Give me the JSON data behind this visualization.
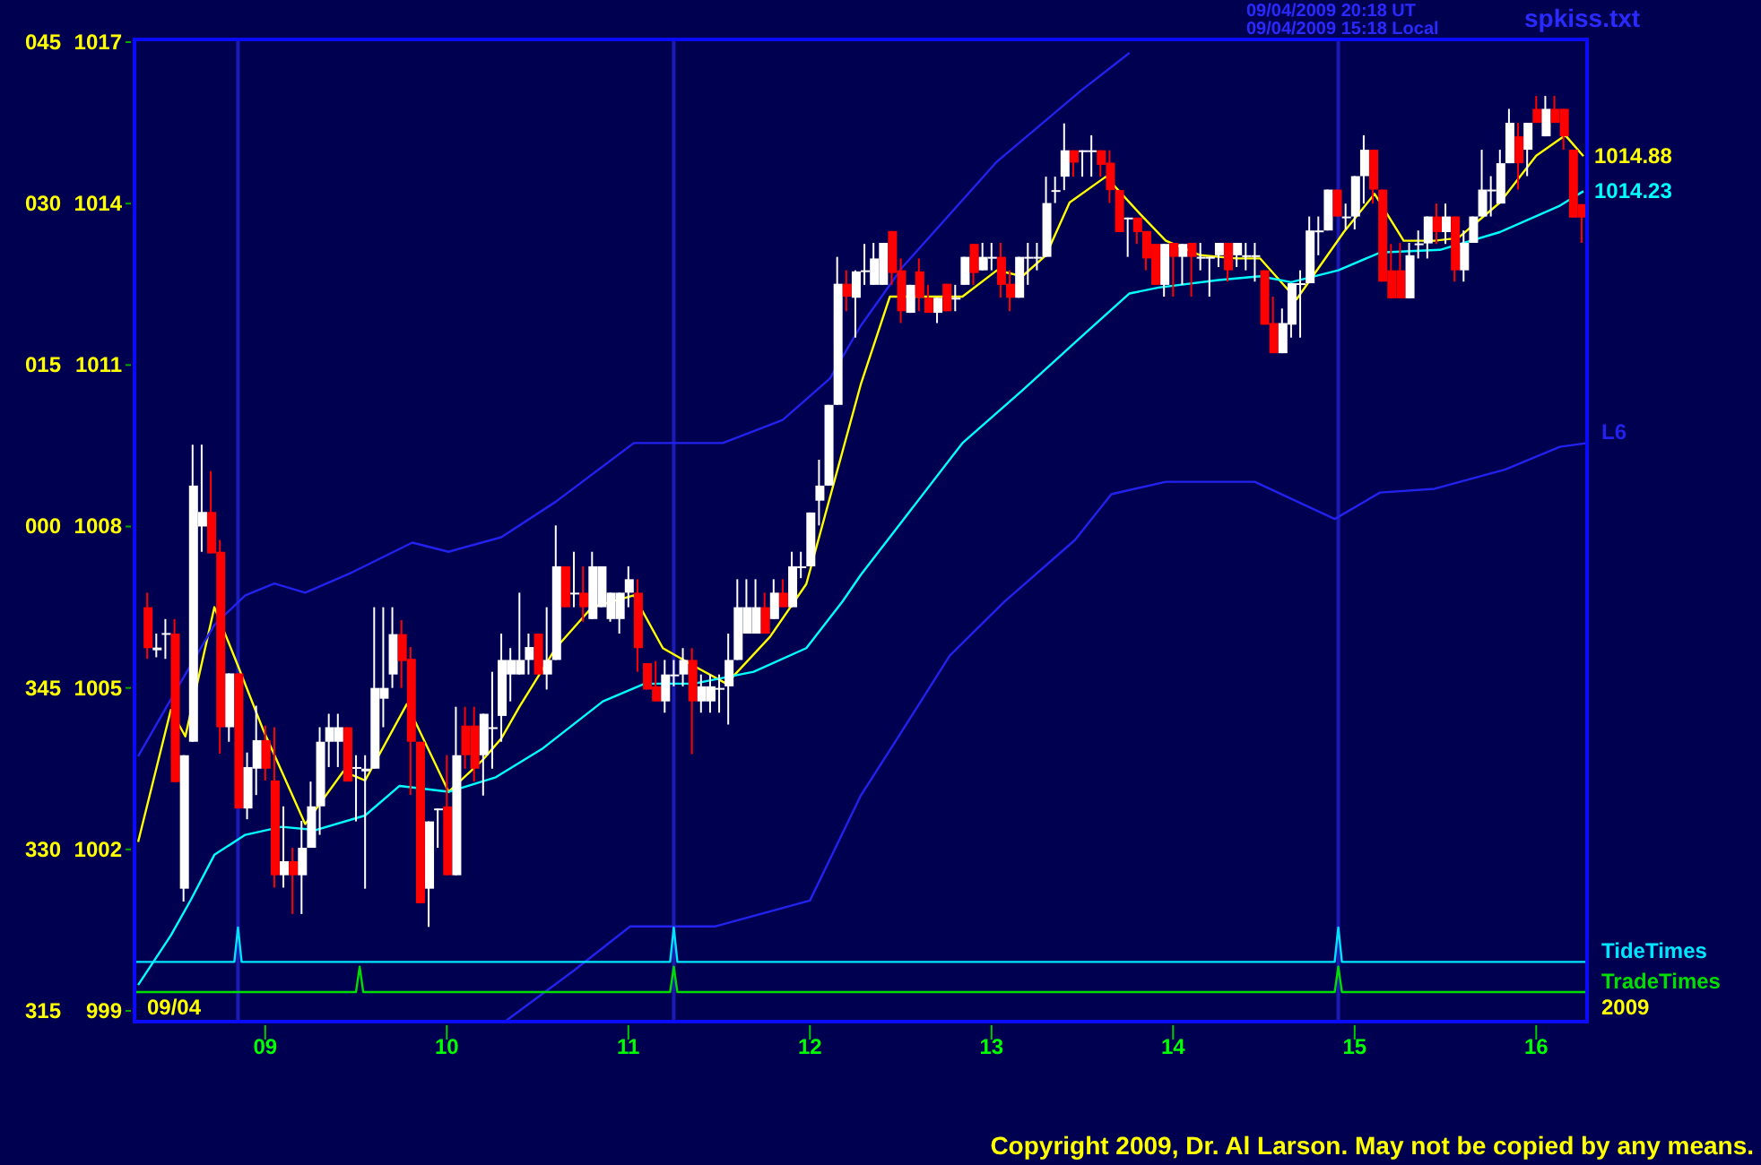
{
  "chart_data": {
    "type": "candlestick",
    "xlim": [
      8.28,
      16.28
    ],
    "ylim": [
      998.8,
      1017.05
    ],
    "xticks": [
      {
        "value": 9,
        "label": "09"
      },
      {
        "value": 10,
        "label": "10"
      },
      {
        "value": 11,
        "label": "11"
      },
      {
        "value": 12,
        "label": "12"
      },
      {
        "value": 13,
        "label": "13"
      },
      {
        "value": 14,
        "label": "14"
      },
      {
        "value": 15,
        "label": "15"
      },
      {
        "value": 16,
        "label": "16"
      }
    ],
    "yticks": [
      999,
      1002,
      1005,
      1008,
      1011,
      1014,
      1017
    ],
    "x": [
      8.35,
      8.4,
      8.45,
      8.5,
      8.55,
      8.6,
      8.65,
      8.7,
      8.75,
      8.8,
      8.85,
      8.9,
      8.95,
      9,
      9.05,
      9.1,
      9.15,
      9.2,
      9.25,
      9.3,
      9.35,
      9.4,
      9.45,
      9.5,
      9.55,
      9.6,
      9.65,
      9.7,
      9.75,
      9.8,
      9.85,
      9.9,
      9.95,
      10,
      10.05,
      10.1,
      10.15,
      10.2,
      10.25,
      10.3,
      10.35,
      10.4,
      10.45,
      10.5,
      10.55,
      10.6,
      10.65,
      10.7,
      10.75,
      10.8,
      10.85,
      10.9,
      10.95,
      11,
      11.05,
      11.1,
      11.15,
      11.2,
      11.25,
      11.3,
      11.35,
      11.4,
      11.45,
      11.5,
      11.55,
      11.6,
      11.65,
      11.7,
      11.75,
      11.8,
      11.85,
      11.9,
      11.95,
      12,
      12.05,
      12.1,
      12.15,
      12.2,
      12.25,
      12.3,
      12.35,
      12.4,
      12.45,
      12.5,
      12.55,
      12.6,
      12.65,
      12.7,
      12.75,
      12.8,
      12.85,
      12.9,
      12.95,
      13,
      13.05,
      13.1,
      13.15,
      13.2,
      13.25,
      13.3,
      13.35,
      13.4,
      13.45,
      13.5,
      13.55,
      13.6,
      13.65,
      13.7,
      13.75,
      13.8,
      13.85,
      13.9,
      13.95,
      14,
      14.05,
      14.1,
      14.15,
      14.2,
      14.25,
      14.3,
      14.35,
      14.4,
      14.45,
      14.5,
      14.55,
      14.6,
      14.65,
      14.7,
      14.75,
      14.8,
      14.85,
      14.9,
      14.95,
      15,
      15.05,
      15.1,
      15.15,
      15.2,
      15.25,
      15.3,
      15.35,
      15.4,
      15.45,
      15.5,
      15.55,
      15.6,
      15.65,
      15.7,
      15.75,
      15.8,
      15.85,
      15.9,
      15.95,
      16,
      16.05,
      16.1,
      16.15,
      16.2,
      16.25
    ],
    "ohlc": [
      [
        1006.5,
        1006.77,
        1005.54,
        1005.74
      ],
      [
        1005.7,
        1006.01,
        1005.57,
        1005.75
      ],
      [
        1006.0,
        1006.28,
        1005.54,
        1006.02
      ],
      [
        1006.01,
        1006.28,
        1003.25,
        1003.25
      ],
      [
        1001.27,
        1003.75,
        1001.03,
        1003.75
      ],
      [
        1004.0,
        1009.52,
        1004.0,
        1008.76
      ],
      [
        1008.0,
        1009.52,
        1007.53,
        1008.27
      ],
      [
        1008.27,
        1009.03,
        1007.5,
        1007.5
      ],
      [
        1007.53,
        1007.75,
        1003.78,
        1004.27
      ],
      [
        1004.27,
        1005.27,
        1004.0,
        1005.27
      ],
      [
        1005.27,
        1005.27,
        1002.76,
        1002.76
      ],
      [
        1002.76,
        1003.8,
        1002.56,
        1003.53
      ],
      [
        1003.5,
        1004.67,
        1003.01,
        1004.03
      ],
      [
        1004.03,
        1004.3,
        1003.28,
        1003.5
      ],
      [
        1003.28,
        1004.27,
        1001.29,
        1001.52
      ],
      [
        1001.52,
        1002.8,
        1001.29,
        1001.78
      ],
      [
        1001.78,
        1002.03,
        1000.8,
        1001.52
      ],
      [
        1001.52,
        1002.53,
        1000.8,
        1002.03
      ],
      [
        1002.03,
        1003.26,
        1002.03,
        1002.8
      ],
      [
        1002.8,
        1004.27,
        1002.27,
        1004.0
      ],
      [
        1004.0,
        1004.52,
        1003.53,
        1004.27
      ],
      [
        1004.0,
        1004.52,
        1003.53,
        1004.27
      ],
      [
        1004.27,
        1004.27,
        1003.26,
        1003.26
      ],
      [
        1003.5,
        1003.75,
        1002.52,
        1003.53
      ],
      [
        1003.45,
        1003.75,
        1001.27,
        1003.5
      ],
      [
        1003.5,
        1006.5,
        1003.5,
        1005.0
      ],
      [
        1004.8,
        1006.5,
        1004.27,
        1005.0
      ],
      [
        1005.25,
        1006.5,
        1005.0,
        1006.0
      ],
      [
        1006.0,
        1006.26,
        1005.0,
        1005.5
      ],
      [
        1005.54,
        1005.76,
        1003.01,
        1004.0
      ],
      [
        1004.0,
        1004.0,
        1001.0,
        1001.0
      ],
      [
        1001.27,
        1002.52,
        1000.56,
        1002.52
      ],
      [
        1002.75,
        1002.76,
        1002.03,
        1002.76
      ],
      [
        1002.8,
        1003.75,
        1001.52,
        1001.52
      ],
      [
        1001.52,
        1004.65,
        1001.52,
        1003.75
      ],
      [
        1004.3,
        1004.65,
        1003.5,
        1003.75
      ],
      [
        1004.3,
        1004.65,
        1003.26,
        1003.5
      ],
      [
        1003.75,
        1004.52,
        1003.0,
        1004.52
      ],
      [
        1004.25,
        1005.3,
        1003.5,
        1004.27
      ],
      [
        1004.48,
        1006.01,
        1004.0,
        1005.52
      ],
      [
        1005.25,
        1005.74,
        1004.75,
        1005.52
      ],
      [
        1005.25,
        1006.77,
        1005.25,
        1005.52
      ],
      [
        1005.52,
        1006.01,
        1005.25,
        1005.76
      ],
      [
        1006.01,
        1006.01,
        1005.25,
        1005.25
      ],
      [
        1005.25,
        1006.5,
        1004.97,
        1005.52
      ],
      [
        1005.52,
        1008.02,
        1005.52,
        1007.26
      ],
      [
        1007.26,
        1007.26,
        1006.5,
        1006.5
      ],
      [
        1006.75,
        1007.53,
        1006.5,
        1006.77
      ],
      [
        1006.77,
        1007.26,
        1006.23,
        1006.5
      ],
      [
        1006.28,
        1007.53,
        1006.28,
        1007.26
      ],
      [
        1006.5,
        1007.26,
        1006.5,
        1007.26
      ],
      [
        1006.28,
        1006.77,
        1006.23,
        1006.77
      ],
      [
        1006.28,
        1006.77,
        1006.01,
        1006.77
      ],
      [
        1006.77,
        1007.26,
        1006.5,
        1007.02
      ],
      [
        1006.77,
        1007.02,
        1005.3,
        1005.74
      ],
      [
        1005.46,
        1005.46,
        1004.97,
        1004.97
      ],
      [
        1005.03,
        1005.5,
        1004.75,
        1004.75
      ],
      [
        1004.75,
        1005.52,
        1004.54,
        1005.25
      ],
      [
        1005.23,
        1005.52,
        1005.03,
        1005.25
      ],
      [
        1005.25,
        1005.74,
        1005.03,
        1005.52
      ],
      [
        1005.52,
        1005.74,
        1003.77,
        1004.75
      ],
      [
        1004.75,
        1005.25,
        1004.54,
        1005.03
      ],
      [
        1004.75,
        1005.25,
        1004.54,
        1005.03
      ],
      [
        1004.99,
        1005.25,
        1004.54,
        1005.0
      ],
      [
        1005.03,
        1006.01,
        1004.32,
        1005.52
      ],
      [
        1005.52,
        1007.02,
        1005.52,
        1006.5
      ],
      [
        1006.01,
        1007.02,
        1006.01,
        1006.5
      ],
      [
        1006.01,
        1007.02,
        1006.01,
        1006.5
      ],
      [
        1006.5,
        1006.77,
        1006.01,
        1006.01
      ],
      [
        1006.28,
        1007.02,
        1006.28,
        1006.77
      ],
      [
        1006.77,
        1007.02,
        1006.5,
        1006.5
      ],
      [
        1006.5,
        1007.53,
        1006.5,
        1007.26
      ],
      [
        1007.24,
        1007.53,
        1007.04,
        1007.26
      ],
      [
        1007.26,
        1008.26,
        1007.26,
        1008.26
      ],
      [
        1008.48,
        1009.24,
        1008.02,
        1008.76
      ],
      [
        1008.76,
        1010.26,
        1008.76,
        1010.26
      ],
      [
        1010.26,
        1013.01,
        1010.26,
        1012.51
      ],
      [
        1012.51,
        1012.76,
        1012.0,
        1012.27
      ],
      [
        1012.25,
        1012.76,
        1011.51,
        1012.74
      ],
      [
        1012.74,
        1013.25,
        1012.49,
        1012.76
      ],
      [
        1012.49,
        1013.27,
        1012.49,
        1012.98
      ],
      [
        1012.49,
        1013.27,
        1012.49,
        1013.27
      ],
      [
        1013.49,
        1013.49,
        1012.49,
        1012.71
      ],
      [
        1012.76,
        1012.98,
        1011.78,
        1012.0
      ],
      [
        1011.97,
        1012.49,
        1011.97,
        1012.49
      ],
      [
        1012.74,
        1012.98,
        1012.0,
        1012.25
      ],
      [
        1012.25,
        1012.49,
        1011.97,
        1011.97
      ],
      [
        1011.97,
        1012.25,
        1011.78,
        1012.25
      ],
      [
        1012.51,
        1012.51,
        1012.0,
        1012.0
      ],
      [
        1012.24,
        1012.49,
        1012.0,
        1012.25
      ],
      [
        1012.49,
        1013.01,
        1012.49,
        1013.01
      ],
      [
        1013.25,
        1013.25,
        1012.49,
        1012.71
      ],
      [
        1012.76,
        1013.27,
        1012.76,
        1013.01
      ],
      [
        1013.0,
        1013.27,
        1012.76,
        1013.01
      ],
      [
        1013.01,
        1013.27,
        1012.25,
        1012.49
      ],
      [
        1012.51,
        1012.76,
        1012.0,
        1012.25
      ],
      [
        1012.25,
        1013.01,
        1012.25,
        1013.01
      ],
      [
        1013.0,
        1013.27,
        1012.49,
        1013.01
      ],
      [
        1013.0,
        1013.27,
        1012.76,
        1013.01
      ],
      [
        1013.01,
        1014.5,
        1013.01,
        1014.01
      ],
      [
        1014.24,
        1014.5,
        1014.01,
        1014.25
      ],
      [
        1014.5,
        1015.49,
        1014.25,
        1014.99
      ],
      [
        1014.99,
        1014.99,
        1014.5,
        1014.76
      ],
      [
        1014.98,
        1014.99,
        1014.5,
        1014.99
      ],
      [
        1014.98,
        1015.27,
        1014.5,
        1014.99
      ],
      [
        1014.99,
        1014.99,
        1014.5,
        1014.72
      ],
      [
        1014.76,
        1014.99,
        1014.01,
        1014.25
      ],
      [
        1014.25,
        1014.25,
        1013.47,
        1013.47
      ],
      [
        1013.73,
        1013.74,
        1013.01,
        1013.74
      ],
      [
        1013.74,
        1013.74,
        1013.25,
        1013.47
      ],
      [
        1013.49,
        1013.49,
        1012.76,
        1012.98
      ],
      [
        1013.25,
        1013.25,
        1012.49,
        1012.49
      ],
      [
        1012.49,
        1013.25,
        1012.27,
        1013.25
      ],
      [
        1013.27,
        1013.27,
        1012.27,
        1013.01
      ],
      [
        1013.01,
        1013.25,
        1012.49,
        1013.25
      ],
      [
        1013.27,
        1013.27,
        1012.27,
        1013.01
      ],
      [
        1013.0,
        1013.27,
        1012.76,
        1013.01
      ],
      [
        1013.0,
        1013.01,
        1012.27,
        1013.01
      ],
      [
        1013.04,
        1013.27,
        1012.82,
        1013.27
      ],
      [
        1013.27,
        1013.27,
        1012.55,
        1012.76
      ],
      [
        1013.04,
        1013.27,
        1012.82,
        1013.27
      ],
      [
        1013.03,
        1013.27,
        1012.76,
        1013.04
      ],
      [
        1013.03,
        1013.27,
        1012.55,
        1013.04
      ],
      [
        1012.76,
        1012.76,
        1011.75,
        1011.75
      ],
      [
        1011.78,
        1012.27,
        1011.22,
        1011.22
      ],
      [
        1011.22,
        1012.05,
        1011.22,
        1011.78
      ],
      [
        1011.75,
        1012.52,
        1011.51,
        1012.52
      ],
      [
        1012.51,
        1012.76,
        1011.51,
        1012.52
      ],
      [
        1012.52,
        1013.76,
        1012.52,
        1013.5
      ],
      [
        1013.49,
        1013.76,
        1013.04,
        1013.5
      ],
      [
        1013.5,
        1014.26,
        1013.5,
        1014.26
      ],
      [
        1014.26,
        1014.26,
        1013.76,
        1013.76
      ],
      [
        1013.75,
        1014.0,
        1013.52,
        1013.76
      ],
      [
        1013.76,
        1014.51,
        1013.52,
        1014.51
      ],
      [
        1014.51,
        1015.27,
        1014.0,
        1015.0
      ],
      [
        1015.0,
        1015.0,
        1014.0,
        1014.26
      ],
      [
        1014.26,
        1014.26,
        1012.55,
        1012.55
      ],
      [
        1012.76,
        1013.25,
        1012.24,
        1012.24
      ],
      [
        1012.76,
        1013.27,
        1012.24,
        1012.24
      ],
      [
        1012.24,
        1013.27,
        1012.24,
        1013.04
      ],
      [
        1013.25,
        1013.5,
        1012.98,
        1013.26
      ],
      [
        1013.26,
        1013.76,
        1012.98,
        1013.76
      ],
      [
        1013.76,
        1014.0,
        1013.25,
        1013.47
      ],
      [
        1013.47,
        1014.0,
        1013.25,
        1013.76
      ],
      [
        1013.76,
        1013.76,
        1012.55,
        1012.76
      ],
      [
        1012.76,
        1013.5,
        1012.55,
        1013.27
      ],
      [
        1013.27,
        1013.76,
        1013.27,
        1013.76
      ],
      [
        1013.76,
        1015.0,
        1013.76,
        1014.26
      ],
      [
        1014.25,
        1014.51,
        1013.76,
        1014.26
      ],
      [
        1014.0,
        1015.0,
        1014.0,
        1014.75
      ],
      [
        1014.75,
        1015.76,
        1014.75,
        1015.5
      ],
      [
        1015.25,
        1015.5,
        1014.26,
        1014.75
      ],
      [
        1015.0,
        1015.5,
        1014.51,
        1015.5
      ],
      [
        1015.76,
        1016.0,
        1015.5,
        1015.5
      ],
      [
        1015.25,
        1016.0,
        1015.25,
        1015.76
      ],
      [
        1015.76,
        1016.0,
        1015.5,
        1015.5
      ],
      [
        1015.76,
        1015.76,
        1015.0,
        1015.25
      ],
      [
        1015.0,
        1015.0,
        1013.74,
        1013.74
      ],
      [
        1013.99,
        1013.99,
        1013.27,
        1013.74
      ]
    ],
    "colors": [
      "#ff0000",
      "#ffffff",
      "#ffffff",
      "#ff0000",
      "#ffffff",
      "#ffffff",
      "#ffffff",
      "#ff0000",
      "#ff0000",
      "#ffffff",
      "#ff0000",
      "#ffffff",
      "#ffffff",
      "#ff0000",
      "#ff0000",
      "#ffffff",
      "#ff0000",
      "#ffffff",
      "#ffffff",
      "#ffffff",
      "#ffffff",
      "#ffffff",
      "#ff0000",
      "#ffffff",
      "#ffffff",
      "#ffffff",
      "#ffffff",
      "#ffffff",
      "#ff0000",
      "#ff0000",
      "#ff0000",
      "#ffffff",
      "#ffffff",
      "#ff0000",
      "#ffffff",
      "#ff0000",
      "#ff0000",
      "#ffffff",
      "#ffffff",
      "#ffffff",
      "#ffffff",
      "#ffffff",
      "#ffffff",
      "#ff0000",
      "#ffffff",
      "#ffffff",
      "#ff0000",
      "#ffffff",
      "#ff0000",
      "#ffffff",
      "#ffffff",
      "#ffffff",
      "#ffffff",
      "#ffffff",
      "#ff0000",
      "#ff0000",
      "#ff0000",
      "#ffffff",
      "#ffffff",
      "#ffffff",
      "#ff0000",
      "#ffffff",
      "#ffffff",
      "#ffffff",
      "#ffffff",
      "#ffffff",
      "#ffffff",
      "#ffffff",
      "#ff0000",
      "#ffffff",
      "#ff0000",
      "#ffffff",
      "#ffffff",
      "#ffffff",
      "#ffffff",
      "#ffffff",
      "#ffffff",
      "#ff0000",
      "#ffffff",
      "#ffffff",
      "#ffffff",
      "#ffffff",
      "#ff0000",
      "#ff0000",
      "#ffffff",
      "#ff0000",
      "#ff0000",
      "#ffffff",
      "#ff0000",
      "#ffffff",
      "#ffffff",
      "#ff0000",
      "#ffffff",
      "#ffffff",
      "#ff0000",
      "#ff0000",
      "#ffffff",
      "#ffffff",
      "#ffffff",
      "#ffffff",
      "#ffffff",
      "#ffffff",
      "#ff0000",
      "#ffffff",
      "#ffffff",
      "#ff0000",
      "#ff0000",
      "#ff0000",
      "#ffffff",
      "#ff0000",
      "#ff0000",
      "#ff0000",
      "#ffffff",
      "#ff0000",
      "#ffffff",
      "#ff0000",
      "#ffffff",
      "#ffffff",
      "#ffffff",
      "#ff0000",
      "#ffffff",
      "#ffffff",
      "#ffffff",
      "#ff0000",
      "#ff0000",
      "#ffffff",
      "#ffffff",
      "#ffffff",
      "#ffffff",
      "#ffffff",
      "#ffffff",
      "#ff0000",
      "#ffffff",
      "#ffffff",
      "#ffffff",
      "#ff0000",
      "#ff0000",
      "#ff0000",
      "#ff0000",
      "#ffffff",
      "#ffffff",
      "#ffffff",
      "#ff0000",
      "#ffffff",
      "#ff0000",
      "#ffffff",
      "#ffffff",
      "#ffffff",
      "#ffffff",
      "#ffffff",
      "#ffffff",
      "#ff0000",
      "#ffffff",
      "#ff0000",
      "#ffffff",
      "#ff0000",
      "#ff0000",
      "#ff0000",
      "#ff0000"
    ],
    "series": [
      {
        "type": "line",
        "color": "#ffff00",
        "x": [
          8.3,
          8.48,
          8.56,
          8.72,
          8.85,
          8.99,
          9.22,
          9.43,
          9.55,
          9.78,
          10.01,
          10.2,
          10.3,
          10.4,
          10.6,
          10.8,
          11.03,
          11.19,
          11.36,
          11.54,
          11.78,
          11.98,
          12.28,
          12.44,
          12.67,
          12.84,
          13.03,
          13.17,
          13.3,
          13.43,
          13.63,
          13.82,
          13.96,
          14.15,
          14.35,
          14.48,
          14.68,
          14.94,
          15.11,
          15.27,
          15.44,
          15.57,
          15.8,
          16.0,
          16.16,
          16.26
        ],
        "values": [
          1002.14,
          1004.59,
          1004.1,
          1006.5,
          1005.41,
          1004.21,
          1002.47,
          1003.45,
          1003.28,
          1004.7,
          1003.07,
          1003.67,
          1004.06,
          1004.65,
          1005.74,
          1006.5,
          1006.72,
          1005.74,
          1005.41,
          1005.08,
          1005.95,
          1006.93,
          1010.64,
          1012.27,
          1012.27,
          1012.27,
          1012.76,
          1012.65,
          1013.04,
          1014.02,
          1014.5,
          1013.8,
          1013.31,
          1013.04,
          1012.98,
          1012.98,
          1012.22,
          1013.47,
          1014.18,
          1013.31,
          1013.31,
          1013.36,
          1014.02,
          1014.89,
          1015.27,
          1014.88
        ],
        "value_labels": [
          null,
          null,
          null,
          null,
          null,
          null,
          null,
          null,
          null,
          null,
          null,
          null,
          null,
          null,
          null,
          null,
          null,
          null,
          null,
          null,
          null,
          null,
          null,
          null,
          null,
          null,
          null,
          null,
          null,
          null,
          null,
          null,
          null,
          null,
          null,
          null,
          null,
          null,
          null,
          null,
          null,
          null,
          null,
          null,
          null,
          "1014.88"
        ]
      },
      {
        "type": "line",
        "color": "#00ffff",
        "x": [
          8.3,
          8.48,
          8.59,
          8.72,
          8.89,
          9.09,
          9.28,
          9.55,
          9.74,
          10.01,
          10.27,
          10.53,
          10.86,
          11.09,
          11.36,
          11.69,
          11.98,
          12.18,
          12.28,
          12.84,
          13.17,
          13.49,
          13.76,
          13.92,
          14.25,
          14.48,
          14.65,
          14.91,
          15.14,
          15.47,
          15.8,
          16.13,
          16.26
        ],
        "values": [
          999.48,
          1000.4,
          1001.06,
          1001.9,
          1002.27,
          1002.42,
          1002.36,
          1002.63,
          1003.18,
          1003.07,
          1003.34,
          1003.88,
          1004.75,
          1005.08,
          1005.08,
          1005.3,
          1005.74,
          1006.61,
          1007.1,
          1009.55,
          1010.53,
          1011.51,
          1012.33,
          1012.44,
          1012.58,
          1012.65,
          1012.54,
          1012.76,
          1013.09,
          1013.14,
          1013.47,
          1013.96,
          1014.23
        ],
        "value_labels": [
          null,
          null,
          null,
          null,
          null,
          null,
          null,
          null,
          null,
          null,
          null,
          null,
          null,
          null,
          null,
          null,
          null,
          null,
          null,
          null,
          null,
          null,
          null,
          null,
          null,
          null,
          null,
          null,
          null,
          null,
          null,
          null,
          "1014.23"
        ]
      },
      {
        "type": "line",
        "color": "#2222ee",
        "x": [
          8.3,
          8.53,
          8.72,
          8.89,
          9.05,
          9.22,
          9.48,
          9.81,
          10.01,
          10.3,
          10.6,
          11.03,
          11.52,
          11.85,
          12.11,
          12.28,
          12.51,
          13.03,
          13.49,
          13.76
        ],
        "values": [
          1003.73,
          1005.08,
          1006.17,
          1006.72,
          1006.94,
          1006.77,
          1007.15,
          1007.7,
          1007.53,
          1007.8,
          1008.46,
          1009.55,
          1009.55,
          1009.98,
          1010.75,
          1011.73,
          1012.82,
          1014.78,
          1016.09,
          1016.8
        ]
      },
      {
        "type": "line",
        "name": "L6",
        "color": "#2222ee",
        "x": [
          10.32,
          10.7,
          11.01,
          11.48,
          12.0,
          12.28,
          12.47,
          12.77,
          13.07,
          13.46,
          13.66,
          13.96,
          14.45,
          14.89,
          15.14,
          15.44,
          15.83,
          16.13,
          16.28
        ],
        "values": [
          998.8,
          999.75,
          1000.57,
          1000.57,
          1001.05,
          1003.0,
          1004.0,
          1005.6,
          1006.6,
          1007.75,
          1008.6,
          1008.83,
          1008.83,
          1008.14,
          1008.63,
          1008.7,
          1009.06,
          1009.48,
          1009.55
        ]
      },
      {
        "type": "line",
        "name": "TideTimes",
        "color": "#00e5ff",
        "x": [
          8.28,
          8.83,
          8.85,
          8.87,
          11.23,
          11.25,
          11.27,
          14.89,
          14.91,
          14.93,
          16.28
        ],
        "values": [
          999.91,
          999.91,
          1000.55,
          999.91,
          999.91,
          1000.55,
          999.91,
          999.91,
          1000.55,
          999.91,
          999.91
        ]
      },
      {
        "type": "line",
        "name": "TradeTimes",
        "color": "#00dd00",
        "x": [
          8.28,
          9.5,
          9.52,
          9.54,
          11.23,
          11.25,
          11.27,
          14.89,
          14.91,
          14.93,
          16.28
        ],
        "values": [
          999.35,
          999.35,
          999.82,
          999.35,
          999.35,
          999.82,
          999.35,
          999.35,
          999.82,
          999.35,
          999.35
        ]
      }
    ],
    "ref_lines": [
      {
        "axis": "x",
        "value": 8.85,
        "color": "#1a1ab4"
      },
      {
        "axis": "x",
        "value": 11.25,
        "color": "#1a1ab4"
      },
      {
        "axis": "x",
        "value": 14.91,
        "color": "#1a1ab4"
      }
    ],
    "annotations": [
      "09/04/2009 20:18 UT",
      "09/04/2009 15:18 Local",
      "spkiss.txt",
      "Copyright 2009, Dr. Al Larson. May not be copied by any means.",
      "09/04",
      "2009",
      "315",
      "330",
      "345",
      "000",
      "015",
      "030",
      "045"
    ]
  }
}
